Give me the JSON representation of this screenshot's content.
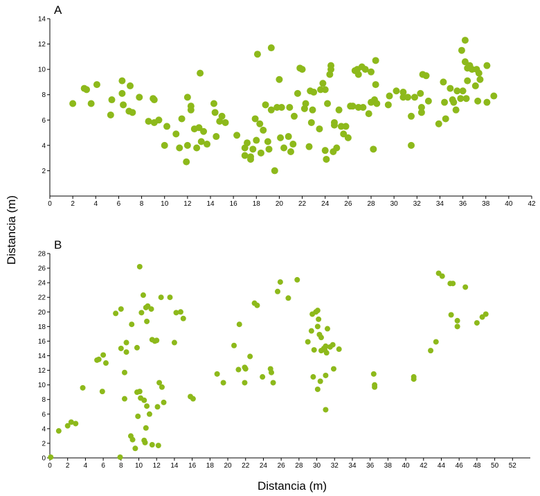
{
  "figure": {
    "ylabel": "Distancia (m)",
    "xlabel": "Distancia (m)",
    "point_color": "#8db91b"
  },
  "chart_data": [
    {
      "type": "scatter",
      "panel_label": "A",
      "xlim": [
        0,
        42
      ],
      "ylim": [
        0,
        14
      ],
      "x_ticks": [
        "0",
        "2",
        "4",
        "6",
        "8",
        "10",
        "12",
        "14",
        "16",
        "18",
        "20",
        "22",
        "24",
        "26",
        "28",
        "30",
        "32",
        "34",
        "36",
        "38",
        "40",
        "42"
      ],
      "y_ticks": [
        "2",
        "4",
        "6",
        "8",
        "10",
        "12",
        "14"
      ],
      "grid": false,
      "points": [
        [
          2.0,
          7.3
        ],
        [
          3.0,
          8.5
        ],
        [
          3.2,
          8.4
        ],
        [
          3.6,
          7.3
        ],
        [
          4.1,
          8.8
        ],
        [
          5.3,
          6.4
        ],
        [
          5.4,
          7.6
        ],
        [
          6.3,
          9.1
        ],
        [
          6.3,
          8.1
        ],
        [
          6.4,
          7.2
        ],
        [
          6.9,
          6.7
        ],
        [
          7.0,
          8.7
        ],
        [
          7.2,
          6.6
        ],
        [
          7.8,
          7.8
        ],
        [
          8.6,
          5.9
        ],
        [
          9.0,
          7.7
        ],
        [
          9.1,
          7.6
        ],
        [
          9.1,
          5.8
        ],
        [
          9.5,
          6.0
        ],
        [
          10.0,
          4.0
        ],
        [
          10.2,
          5.5
        ],
        [
          11.0,
          4.9
        ],
        [
          11.3,
          3.8
        ],
        [
          11.5,
          6.1
        ],
        [
          11.9,
          2.7
        ],
        [
          12.0,
          7.8
        ],
        [
          12.0,
          4.0
        ],
        [
          12.3,
          6.8
        ],
        [
          12.3,
          7.1
        ],
        [
          12.6,
          5.3
        ],
        [
          12.8,
          3.8
        ],
        [
          13.0,
          5.4
        ],
        [
          13.1,
          9.7
        ],
        [
          13.2,
          4.3
        ],
        [
          13.4,
          5.1
        ],
        [
          13.7,
          4.1
        ],
        [
          14.3,
          7.3
        ],
        [
          14.4,
          6.6
        ],
        [
          14.5,
          4.7
        ],
        [
          14.8,
          5.9
        ],
        [
          15.0,
          6.3
        ],
        [
          15.3,
          5.8
        ],
        [
          16.3,
          4.8
        ],
        [
          17.0,
          3.2
        ],
        [
          17.0,
          3.8
        ],
        [
          17.2,
          4.2
        ],
        [
          17.5,
          3.1
        ],
        [
          17.5,
          2.9
        ],
        [
          17.7,
          3.7
        ],
        [
          17.9,
          6.1
        ],
        [
          18.0,
          4.4
        ],
        [
          18.1,
          11.2
        ],
        [
          18.3,
          5.7
        ],
        [
          18.4,
          3.4
        ],
        [
          18.6,
          5.2
        ],
        [
          18.8,
          7.2
        ],
        [
          19.0,
          4.3
        ],
        [
          19.1,
          3.7
        ],
        [
          19.3,
          6.8
        ],
        [
          19.3,
          11.7
        ],
        [
          19.6,
          2.0
        ],
        [
          19.8,
          7.0
        ],
        [
          20.0,
          9.2
        ],
        [
          20.1,
          4.6
        ],
        [
          20.2,
          7.0
        ],
        [
          20.4,
          3.8
        ],
        [
          20.8,
          4.7
        ],
        [
          20.9,
          7.0
        ],
        [
          21.0,
          3.5
        ],
        [
          21.2,
          4.1
        ],
        [
          21.3,
          6.3
        ],
        [
          21.6,
          8.1
        ],
        [
          21.8,
          10.1
        ],
        [
          22.0,
          10.0
        ],
        [
          22.2,
          6.9
        ],
        [
          22.3,
          7.3
        ],
        [
          22.6,
          3.9
        ],
        [
          22.7,
          8.3
        ],
        [
          22.8,
          5.8
        ],
        [
          22.9,
          6.8
        ],
        [
          23.0,
          8.2
        ],
        [
          23.5,
          5.3
        ],
        [
          23.6,
          8.4
        ],
        [
          23.8,
          8.9
        ],
        [
          24.0,
          3.6
        ],
        [
          24.0,
          8.4
        ],
        [
          24.1,
          2.9
        ],
        [
          24.2,
          7.3
        ],
        [
          24.4,
          9.6
        ],
        [
          24.5,
          10.3
        ],
        [
          24.5,
          10.0
        ],
        [
          24.7,
          3.5
        ],
        [
          24.8,
          5.8
        ],
        [
          24.8,
          5.6
        ],
        [
          25.0,
          3.8
        ],
        [
          25.2,
          6.8
        ],
        [
          25.4,
          5.5
        ],
        [
          25.6,
          4.9
        ],
        [
          25.8,
          5.5
        ],
        [
          26.0,
          4.6
        ],
        [
          26.2,
          7.1
        ],
        [
          26.4,
          7.1
        ],
        [
          26.6,
          9.9
        ],
        [
          26.8,
          10.0
        ],
        [
          26.9,
          7.0
        ],
        [
          26.9,
          9.6
        ],
        [
          27.2,
          10.2
        ],
        [
          27.3,
          7.0
        ],
        [
          27.5,
          10.0
        ],
        [
          27.8,
          6.5
        ],
        [
          28.0,
          9.8
        ],
        [
          28.0,
          7.4
        ],
        [
          28.2,
          3.7
        ],
        [
          28.3,
          7.6
        ],
        [
          28.4,
          10.7
        ],
        [
          28.4,
          8.8
        ],
        [
          28.5,
          7.3
        ],
        [
          29.5,
          7.2
        ],
        [
          29.6,
          7.9
        ],
        [
          30.2,
          8.3
        ],
        [
          30.8,
          8.2
        ],
        [
          30.8,
          7.8
        ],
        [
          31.2,
          7.8
        ],
        [
          31.5,
          6.3
        ],
        [
          31.5,
          4.0
        ],
        [
          31.8,
          7.8
        ],
        [
          32.3,
          8.1
        ],
        [
          32.4,
          7.0
        ],
        [
          32.4,
          6.6
        ],
        [
          32.5,
          9.6
        ],
        [
          32.8,
          9.5
        ],
        [
          33.0,
          7.5
        ],
        [
          33.9,
          5.7
        ],
        [
          34.3,
          9.0
        ],
        [
          34.4,
          7.4
        ],
        [
          34.5,
          6.1
        ],
        [
          34.9,
          8.5
        ],
        [
          35.1,
          7.6
        ],
        [
          35.2,
          7.4
        ],
        [
          35.4,
          6.8
        ],
        [
          35.5,
          8.3
        ],
        [
          35.8,
          7.7
        ],
        [
          35.9,
          11.5
        ],
        [
          36.0,
          8.3
        ],
        [
          36.2,
          12.3
        ],
        [
          36.2,
          10.6
        ],
        [
          36.3,
          7.7
        ],
        [
          36.4,
          10.1
        ],
        [
          36.4,
          9.1
        ],
        [
          36.6,
          10.3
        ],
        [
          36.8,
          10.0
        ],
        [
          37.1,
          8.7
        ],
        [
          37.2,
          10.0
        ],
        [
          37.3,
          7.5
        ],
        [
          37.4,
          9.7
        ],
        [
          37.5,
          9.2
        ],
        [
          38.1,
          10.3
        ],
        [
          38.1,
          7.4
        ],
        [
          38.7,
          7.9
        ]
      ]
    },
    {
      "type": "scatter",
      "panel_label": "B",
      "xlim": [
        0,
        54
      ],
      "ylim": [
        0,
        28
      ],
      "x_ticks": [
        "0",
        "2",
        "4",
        "6",
        "8",
        "10",
        "12",
        "14",
        "16",
        "18",
        "20",
        "22",
        "24",
        "26",
        "28",
        "30",
        "32",
        "34",
        "36",
        "38",
        "40",
        "42",
        "44",
        "46",
        "48",
        "50",
        "52"
      ],
      "y_ticks": [
        "0",
        "2",
        "4",
        "6",
        "8",
        "10",
        "12",
        "14",
        "16",
        "18",
        "20",
        "22",
        "24",
        "26",
        "28"
      ],
      "grid": false,
      "points": [
        [
          0.1,
          0.1
        ],
        [
          1.0,
          3.7
        ],
        [
          2.0,
          4.4
        ],
        [
          2.4,
          4.9
        ],
        [
          2.9,
          4.7
        ],
        [
          3.7,
          9.6
        ],
        [
          5.3,
          13.4
        ],
        [
          5.5,
          13.5
        ],
        [
          5.9,
          9.1
        ],
        [
          6.0,
          14.1
        ],
        [
          6.3,
          13.0
        ],
        [
          7.4,
          19.8
        ],
        [
          7.9,
          0.1
        ],
        [
          8.0,
          20.4
        ],
        [
          8.0,
          15.0
        ],
        [
          8.4,
          11.7
        ],
        [
          8.4,
          8.1
        ],
        [
          8.6,
          15.8
        ],
        [
          8.6,
          14.5
        ],
        [
          9.1,
          3.0
        ],
        [
          9.2,
          18.3
        ],
        [
          9.3,
          2.5
        ],
        [
          9.6,
          1.3
        ],
        [
          9.8,
          15.1
        ],
        [
          9.8,
          9.0
        ],
        [
          9.9,
          5.7
        ],
        [
          10.1,
          9.1
        ],
        [
          10.1,
          26.2
        ],
        [
          10.2,
          8.2
        ],
        [
          10.3,
          19.9
        ],
        [
          10.5,
          22.3
        ],
        [
          10.6,
          7.9
        ],
        [
          10.6,
          2.4
        ],
        [
          10.7,
          2.1
        ],
        [
          10.8,
          20.6
        ],
        [
          10.8,
          4.1
        ],
        [
          10.9,
          7.1
        ],
        [
          10.9,
          18.7
        ],
        [
          11.0,
          20.8
        ],
        [
          11.2,
          6.0
        ],
        [
          11.4,
          20.4
        ],
        [
          11.5,
          1.8
        ],
        [
          11.5,
          16.2
        ],
        [
          11.8,
          16.0
        ],
        [
          12.0,
          16.1
        ],
        [
          12.1,
          7.0
        ],
        [
          12.2,
          1.7
        ],
        [
          12.3,
          10.3
        ],
        [
          12.5,
          22.0
        ],
        [
          12.6,
          9.7
        ],
        [
          12.8,
          7.6
        ],
        [
          13.5,
          22.0
        ],
        [
          14.0,
          15.8
        ],
        [
          14.2,
          19.9
        ],
        [
          14.7,
          20.0
        ],
        [
          15.0,
          19.1
        ],
        [
          15.8,
          8.4
        ],
        [
          16.1,
          8.1
        ],
        [
          18.8,
          11.5
        ],
        [
          19.5,
          10.3
        ],
        [
          20.7,
          15.4
        ],
        [
          21.2,
          12.1
        ],
        [
          21.3,
          18.3
        ],
        [
          21.9,
          12.4
        ],
        [
          21.9,
          10.3
        ],
        [
          22.0,
          12.2
        ],
        [
          22.5,
          13.9
        ],
        [
          23.0,
          21.2
        ],
        [
          23.3,
          20.9
        ],
        [
          23.9,
          11.1
        ],
        [
          24.8,
          12.2
        ],
        [
          24.9,
          11.7
        ],
        [
          25.1,
          10.3
        ],
        [
          25.6,
          22.8
        ],
        [
          25.9,
          24.1
        ],
        [
          26.8,
          21.9
        ],
        [
          27.8,
          24.4
        ],
        [
          29.0,
          15.9
        ],
        [
          29.4,
          17.4
        ],
        [
          29.5,
          19.7
        ],
        [
          29.6,
          11.1
        ],
        [
          29.7,
          14.8
        ],
        [
          29.9,
          20.0
        ],
        [
          30.1,
          20.2
        ],
        [
          30.1,
          9.4
        ],
        [
          30.1,
          18.0
        ],
        [
          30.2,
          19.0
        ],
        [
          30.3,
          16.9
        ],
        [
          30.4,
          10.5
        ],
        [
          30.5,
          14.7
        ],
        [
          30.5,
          16.5
        ],
        [
          30.8,
          15.0
        ],
        [
          30.9,
          14.8
        ],
        [
          31.0,
          6.6
        ],
        [
          31.0,
          15.3
        ],
        [
          31.0,
          11.3
        ],
        [
          31.1,
          14.4
        ],
        [
          31.2,
          17.7
        ],
        [
          31.5,
          15.2
        ],
        [
          31.8,
          15.5
        ],
        [
          31.9,
          12.2
        ],
        [
          32.5,
          14.9
        ],
        [
          36.4,
          11.5
        ],
        [
          36.5,
          10.0
        ],
        [
          36.5,
          9.7
        ],
        [
          40.9,
          11.1
        ],
        [
          40.9,
          10.8
        ],
        [
          42.8,
          14.7
        ],
        [
          43.4,
          15.9
        ],
        [
          43.7,
          25.3
        ],
        [
          44.1,
          24.9
        ],
        [
          45.0,
          23.9
        ],
        [
          45.1,
          19.6
        ],
        [
          45.3,
          23.9
        ],
        [
          45.8,
          18.8
        ],
        [
          45.8,
          18.0
        ],
        [
          46.7,
          23.4
        ],
        [
          48.0,
          18.5
        ],
        [
          48.6,
          19.3
        ],
        [
          49.0,
          19.7
        ]
      ]
    }
  ]
}
